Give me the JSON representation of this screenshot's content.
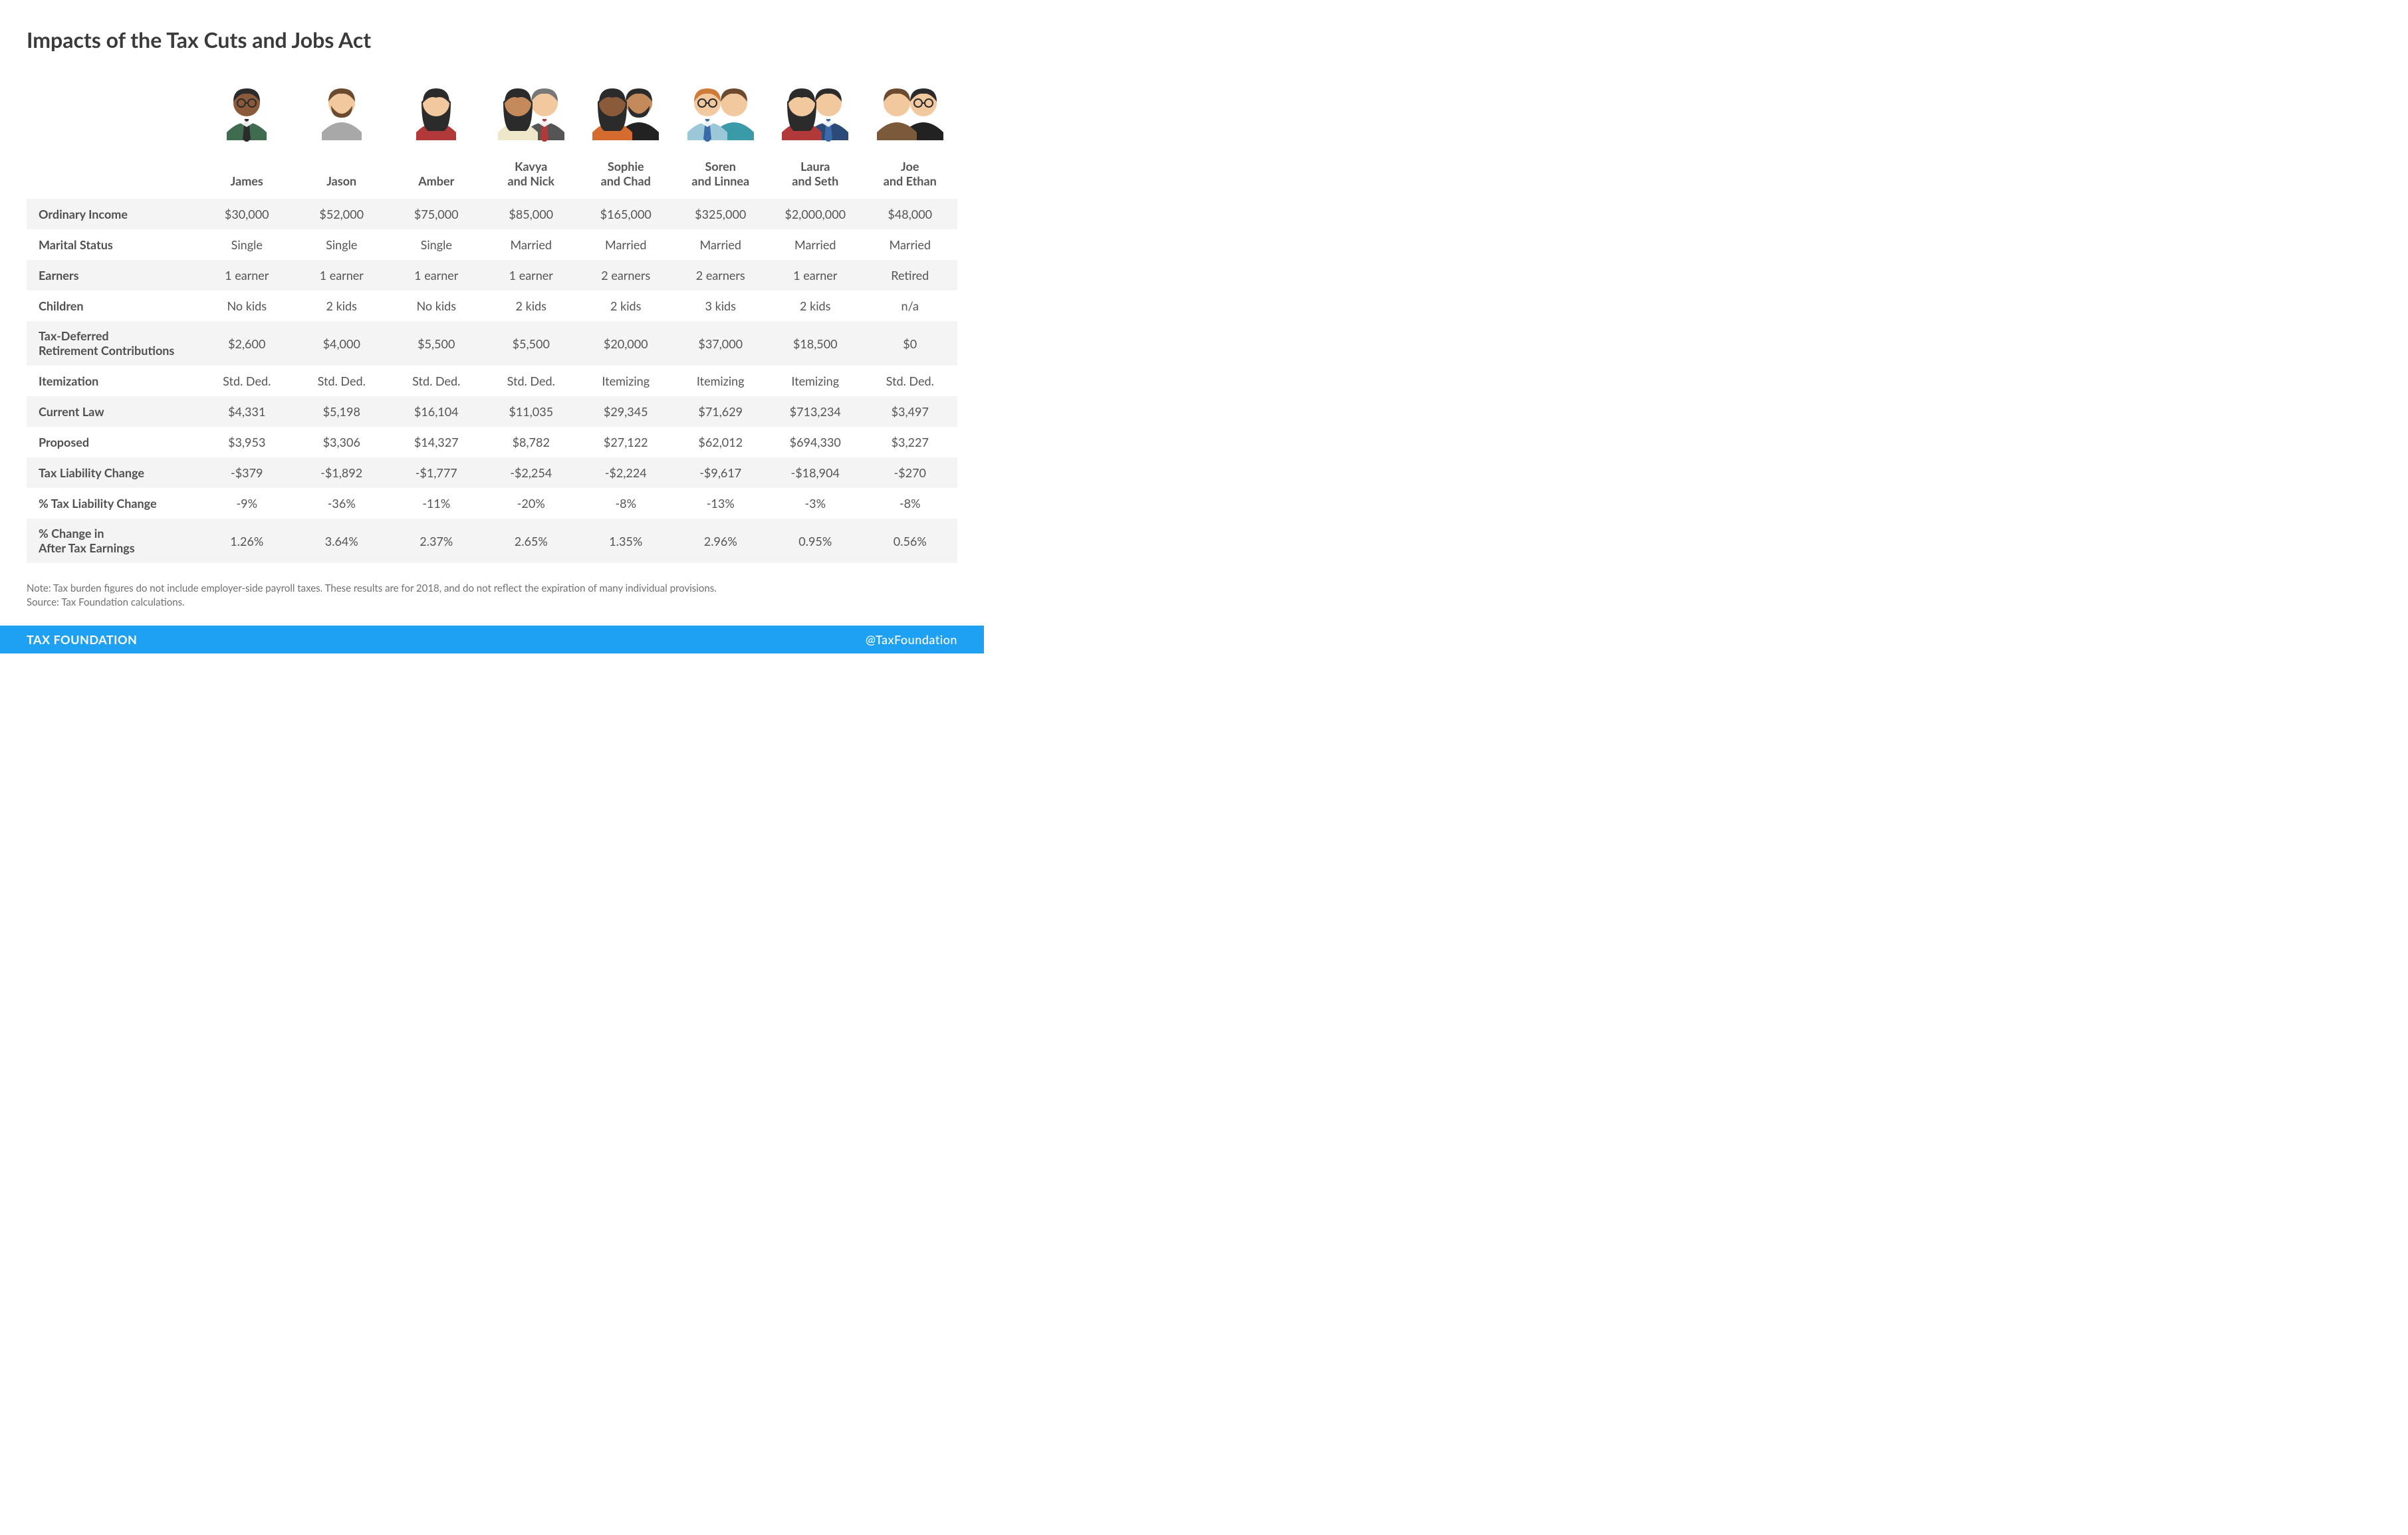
{
  "title": "Impacts of the Tax Cuts and Jobs Act",
  "colors": {
    "row_stripe": "#f4f4f4",
    "text": "#4a4a4a",
    "footer_bg": "#1ea1f2",
    "footer_text": "#ffffff"
  },
  "people": [
    {
      "name": "James",
      "name2": "",
      "avatar": "single-male-dark-glasses"
    },
    {
      "name": "Jason",
      "name2": "",
      "avatar": "single-male-light-beard"
    },
    {
      "name": "Amber",
      "name2": "",
      "avatar": "single-female-dark"
    },
    {
      "name": "Kavya",
      "name2": "and Nick",
      "avatar": "couple-1"
    },
    {
      "name": "Sophie",
      "name2": "and Chad",
      "avatar": "couple-2"
    },
    {
      "name": "Soren",
      "name2": "and Linnea",
      "avatar": "couple-3"
    },
    {
      "name": "Laura",
      "name2": "and Seth",
      "avatar": "couple-4"
    },
    {
      "name": "Joe",
      "name2": "and Ethan",
      "avatar": "couple-5"
    }
  ],
  "rows": [
    {
      "label": "Ordinary Income",
      "cells": [
        "$30,000",
        "$52,000",
        "$75,000",
        "$85,000",
        "$165,000",
        "$325,000",
        "$2,000,000",
        "$48,000"
      ]
    },
    {
      "label": "Marital Status",
      "cells": [
        "Single",
        "Single",
        "Single",
        "Married",
        "Married",
        "Married",
        "Married",
        "Married"
      ]
    },
    {
      "label": "Earners",
      "cells": [
        "1 earner",
        "1 earner",
        "1 earner",
        "1 earner",
        "2 earners",
        "2 earners",
        "1 earner",
        "Retired"
      ]
    },
    {
      "label": "Children",
      "cells": [
        "No kids",
        "2 kids",
        "No kids",
        "2 kids",
        "2 kids",
        "3 kids",
        "2 kids",
        "n/a"
      ]
    },
    {
      "label": "Tax-Deferred\nRetirement Contributions",
      "cells": [
        "$2,600",
        "$4,000",
        "$5,500",
        "$5,500",
        "$20,000",
        "$37,000",
        "$18,500",
        "$0"
      ]
    },
    {
      "label": "Itemization",
      "cells": [
        "Std. Ded.",
        "Std. Ded.",
        "Std. Ded.",
        "Std. Ded.",
        "Itemizing",
        "Itemizing",
        "Itemizing",
        "Std. Ded."
      ]
    },
    {
      "label": "Current Law",
      "cells": [
        "$4,331",
        "$5,198",
        "$16,104",
        "$11,035",
        "$29,345",
        "$71,629",
        "$713,234",
        "$3,497"
      ]
    },
    {
      "label": "Proposed",
      "cells": [
        "$3,953",
        "$3,306",
        "$14,327",
        "$8,782",
        "$27,122",
        "$62,012",
        "$694,330",
        "$3,227"
      ]
    },
    {
      "label": "Tax Liability Change",
      "cells": [
        "-$379",
        "-$1,892",
        "-$1,777",
        "-$2,254",
        "-$2,224",
        "-$9,617",
        "-$18,904",
        "-$270"
      ]
    },
    {
      "label": "% Tax Liability Change",
      "cells": [
        "-9%",
        "-36%",
        "-11%",
        "-20%",
        "-8%",
        "-13%",
        "-3%",
        "-8%"
      ]
    },
    {
      "label": "% Change in\nAfter Tax Earnings",
      "cells": [
        "1.26%",
        "3.64%",
        "2.37%",
        "2.65%",
        "1.35%",
        "2.96%",
        "0.95%",
        "0.56%"
      ]
    }
  ],
  "note_line1": "Note: Tax burden figures do not include employer-side payroll taxes. These results are for 2018, and do not reflect the expiration of many individual provisions.",
  "note_line2": "Source: Tax Foundation calculations.",
  "footer": {
    "left": "TAX FOUNDATION",
    "right": "@TaxFoundation"
  },
  "avatar_palette": {
    "skin_light": "#f2c99e",
    "skin_med": "#c48a5c",
    "skin_dark": "#8a5a3b",
    "hair_black": "#2b2b2b",
    "hair_brown": "#6b4a2e",
    "hair_orange": "#d07a3a",
    "shirt_green": "#3f6b4f",
    "shirt_grey": "#a8a8a8",
    "shirt_red": "#b23939",
    "shirt_cream": "#efe7c9",
    "shirt_orange": "#d66b2f",
    "shirt_blue_l": "#9bc7d9",
    "shirt_teal": "#3a9aa8",
    "shirt_navy": "#2b4a78",
    "shirt_tan": "#7a5a3a",
    "tie_black": "#2b2b2b",
    "tie_red": "#b23939",
    "tie_blue": "#3a6aa8"
  }
}
